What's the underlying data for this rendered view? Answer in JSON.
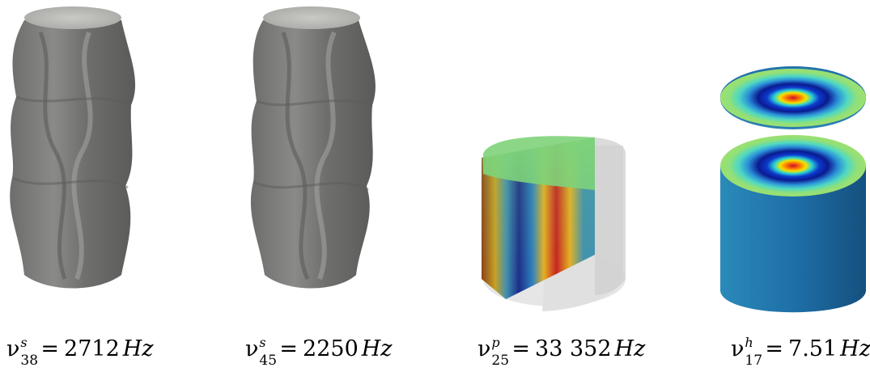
{
  "figures": [
    {
      "symbol": "ν",
      "superscript": "s",
      "subscript": "38",
      "value": "2712",
      "unit": "Hz"
    },
    {
      "symbol": "ν",
      "superscript": "s",
      "subscript": "45",
      "value": "2250",
      "unit": "Hz"
    },
    {
      "symbol": "ν",
      "superscript": "p",
      "subscript": "25",
      "value": "33 352",
      "unit": "Hz"
    },
    {
      "symbol": "ν",
      "superscript": "h",
      "subscript": "17",
      "value": "7.51",
      "unit": "Hz"
    }
  ],
  "colors": {
    "mesh_gray": "#7a7a78",
    "pressure_top": "#7ed37a",
    "helmholtz_side": "#1e6fa8"
  },
  "equals_sign": "="
}
